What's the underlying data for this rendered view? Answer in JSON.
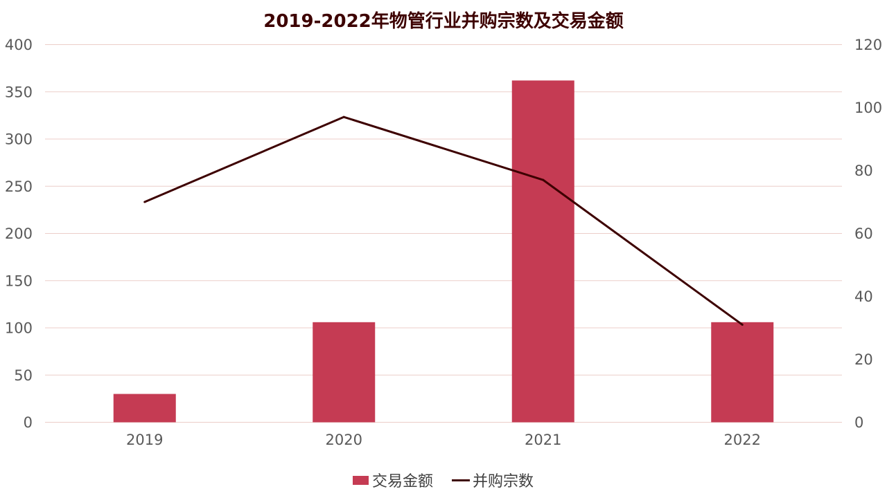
{
  "colors": {
    "bar": "#c53b53",
    "line": "#3d0000",
    "grid": "#eccdc8",
    "title": "#3d0000",
    "tick": "#595959"
  },
  "chart_data": {
    "type": "bar",
    "title": "2019-2022年物管行业并购宗数及交易金额",
    "categories": [
      "2019",
      "2020",
      "2021",
      "2022"
    ],
    "series": [
      {
        "name": "交易金额",
        "type": "bar",
        "axis": "left",
        "values": [
          30,
          106,
          362,
          106
        ]
      },
      {
        "name": "并购宗数",
        "type": "line",
        "axis": "right",
        "values": [
          70,
          97,
          77,
          31
        ]
      }
    ],
    "y_left": {
      "min": 0,
      "max": 400,
      "ticks": [
        "0",
        "50",
        "100",
        "150",
        "200",
        "250",
        "300",
        "350",
        "400"
      ]
    },
    "y_right": {
      "min": 0,
      "max": 120,
      "ticks": [
        "0",
        "20",
        "40",
        "60",
        "80",
        "100",
        "120"
      ]
    },
    "grid": true,
    "legend_position": "bottom"
  }
}
